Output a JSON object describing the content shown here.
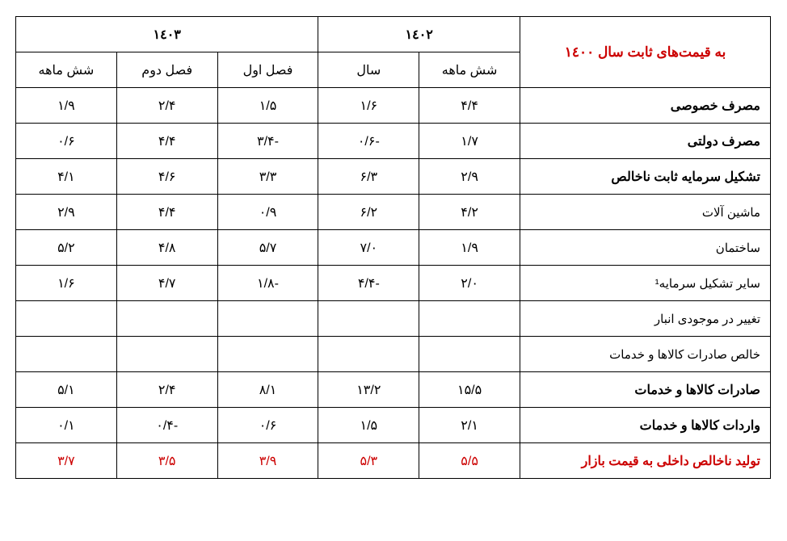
{
  "title": "به قیمت‌های ثابت سال ۱٤۰۰",
  "year_1402": "۱٤۰۲",
  "year_1403": "۱٤۰۳",
  "sub_1402_6mo": "شش ماهه",
  "sub_1402_year": "سال",
  "sub_1403_q1": "فصل اول",
  "sub_1403_q2": "فصل دوم",
  "sub_1403_6mo": "شش ماهه",
  "rows": [
    {
      "label": "مصرف خصوصی",
      "bold": true,
      "vals": [
        "۴/۴",
        "۱/۶",
        "۱/۵",
        "۲/۴",
        "۱/۹"
      ]
    },
    {
      "label": "مصرف دولتی",
      "bold": true,
      "vals": [
        "۱/۷",
        "-۰/۶",
        "-۳/۴",
        "۴/۴",
        "۰/۶"
      ]
    },
    {
      "label": "تشکیل سرمایه ثابت ناخالص",
      "bold": true,
      "vals": [
        "۲/۹",
        "۶/۳",
        "۳/۳",
        "۴/۶",
        "۴/۱"
      ]
    },
    {
      "label": "ماشین آلات",
      "bold": false,
      "vals": [
        "۴/۲",
        "۶/۲",
        "۰/۹",
        "۴/۴",
        "۲/۹"
      ]
    },
    {
      "label": "ساختمان",
      "bold": false,
      "vals": [
        "۱/۹",
        "۷/۰",
        "۵/۷",
        "۴/۸",
        "۵/۲"
      ]
    },
    {
      "label": "سایر تشکیل سرمایه¹",
      "bold": false,
      "vals": [
        "۲/۰",
        "-۴/۴",
        "-۱/۸",
        "۴/۷",
        "۱/۶"
      ]
    },
    {
      "label": "تغییر در موجودی انبار",
      "bold": false,
      "vals": [
        "",
        "",
        "",
        "",
        ""
      ]
    },
    {
      "label": "خالص صادرات کالاها و خدمات",
      "bold": false,
      "vals": [
        "",
        "",
        "",
        "",
        ""
      ]
    },
    {
      "label": "صادرات کالاها و خدمات",
      "bold": true,
      "vals": [
        "۱۵/۵",
        "۱۳/۲",
        "۸/۱",
        "۲/۴",
        "۵/۱"
      ]
    },
    {
      "label": "واردات کالاها و خدمات",
      "bold": true,
      "vals": [
        "۲/۱",
        "۱/۵",
        "۰/۶",
        "-۰/۴",
        "۰/۱"
      ]
    },
    {
      "label": "تولید ناخالص داخلی به قیمت بازار",
      "bold": true,
      "red": true,
      "vals": [
        "۵/۵",
        "۵/۳",
        "۳/۹",
        "۳/۵",
        "۳/۷"
      ]
    }
  ]
}
